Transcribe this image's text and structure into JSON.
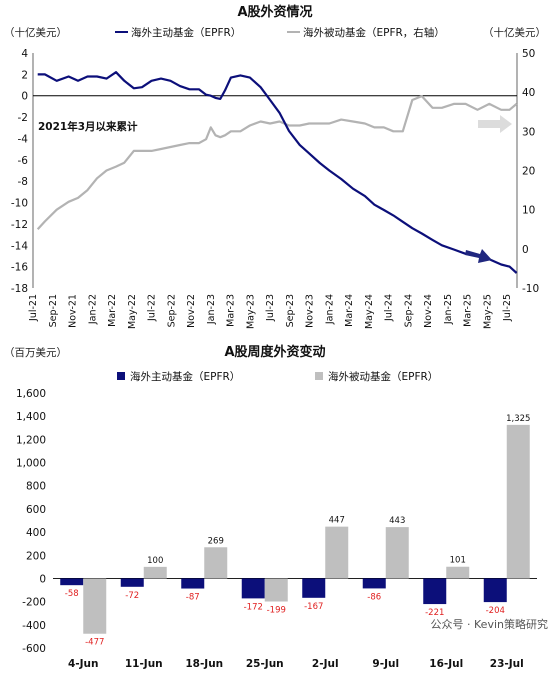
{
  "chart_data": [
    {
      "type": "line",
      "title": "A股外资情况",
      "y_left_unit": "（十亿美元）",
      "y_right_unit": "（十亿美元）",
      "ylim_left": [
        -18,
        4
      ],
      "yticks_left": [
        -18,
        -16,
        -14,
        -12,
        -10,
        -8,
        -6,
        -4,
        -2,
        0,
        2,
        4
      ],
      "ylim_right": [
        -10,
        50
      ],
      "yticks_right": [
        -10,
        0,
        10,
        20,
        30,
        40,
        50
      ],
      "xticks": [
        "Jul-21",
        "Sep-21",
        "Nov-21",
        "Jan-22",
        "Mar-22",
        "May-22",
        "Jul-22",
        "Sep-22",
        "Nov-22",
        "Jan-23",
        "Mar-23",
        "May-23",
        "Jul-23",
        "Sep-23",
        "Nov-23",
        "Jan-24",
        "Mar-24",
        "May-24",
        "Jul-24",
        "Sep-24",
        "Nov-24",
        "Jan-25",
        "Mar-25",
        "May-25",
        "Jul-25"
      ],
      "annotation": "2021年3月以来累计",
      "legend_position": "top",
      "series": [
        {
          "name": "海外主动基金（EPFR）",
          "axis": "left",
          "color": "#0c0f7a",
          "x": [
            2021.54,
            2021.6,
            2021.7,
            2021.8,
            2021.88,
            2021.96,
            2022.04,
            2022.12,
            2022.2,
            2022.27,
            2022.35,
            2022.42,
            2022.5,
            2022.58,
            2022.66,
            2022.74,
            2022.82,
            2022.9,
            2022.96,
            2023.0,
            2023.04,
            2023.08,
            2023.12,
            2023.17,
            2023.25,
            2023.33,
            2023.42,
            2023.5,
            2023.58,
            2023.66,
            2023.75,
            2023.83,
            2023.92,
            2024.0,
            2024.1,
            2024.2,
            2024.3,
            2024.38,
            2024.46,
            2024.54,
            2024.62,
            2024.7,
            2024.78,
            2024.87,
            2024.95,
            2025.05,
            2025.15,
            2025.25,
            2025.35,
            2025.45,
            2025.52,
            2025.58
          ],
          "y": [
            2.0,
            2.0,
            1.4,
            1.8,
            1.4,
            1.8,
            1.8,
            1.6,
            2.2,
            1.4,
            0.7,
            0.8,
            1.4,
            1.6,
            1.4,
            0.9,
            0.6,
            0.6,
            0.1,
            0.0,
            -0.2,
            -0.3,
            0.5,
            1.7,
            1.9,
            1.7,
            0.8,
            -0.4,
            -1.6,
            -3.3,
            -4.6,
            -5.4,
            -6.3,
            -7.0,
            -7.8,
            -8.7,
            -9.4,
            -10.2,
            -10.7,
            -11.2,
            -11.8,
            -12.4,
            -12.9,
            -13.5,
            -14.0,
            -14.4,
            -14.8,
            -15.0,
            -15.3,
            -15.8,
            -16.0,
            -16.6
          ]
        },
        {
          "name": "海外被动基金（EPFR，右轴）",
          "axis": "right",
          "color": "#b3b3b3",
          "x": [
            2021.54,
            2021.6,
            2021.7,
            2021.8,
            2021.88,
            2021.96,
            2022.04,
            2022.12,
            2022.2,
            2022.27,
            2022.35,
            2022.42,
            2022.5,
            2022.58,
            2022.66,
            2022.74,
            2022.82,
            2022.9,
            2022.96,
            2023.0,
            2023.04,
            2023.08,
            2023.12,
            2023.17,
            2023.25,
            2023.33,
            2023.42,
            2023.5,
            2023.58,
            2023.66,
            2023.75,
            2023.83,
            2023.92,
            2024.0,
            2024.1,
            2024.2,
            2024.3,
            2024.38,
            2024.46,
            2024.54,
            2024.62,
            2024.7,
            2024.78,
            2024.87,
            2024.95,
            2025.05,
            2025.15,
            2025.25,
            2025.35,
            2025.45,
            2025.52,
            2025.58
          ],
          "y": [
            5,
            7,
            10,
            12,
            13,
            15,
            18,
            20,
            21,
            22,
            25,
            25,
            25,
            25.5,
            26,
            26.5,
            27,
            27,
            28,
            31,
            29,
            28.5,
            29,
            30,
            30,
            31.5,
            32.5,
            32,
            32.5,
            31.5,
            31.5,
            32,
            32,
            32,
            33,
            32.5,
            32,
            31,
            31,
            30,
            30,
            38,
            39,
            36,
            36,
            37,
            37,
            35.5,
            37,
            35.5,
            35.5,
            37
          ]
        }
      ]
    },
    {
      "type": "bar",
      "title": "A股周度外资变动",
      "y_unit": "（百万美元）",
      "ylim": [
        -600,
        1600
      ],
      "yticks": [
        -600,
        -400,
        -200,
        0,
        200,
        400,
        600,
        800,
        1000,
        1200,
        1400,
        1600
      ],
      "categories": [
        "4-Jun",
        "11-Jun",
        "18-Jun",
        "25-Jun",
        "2-Jul",
        "9-Jul",
        "16-Jul",
        "23-Jul"
      ],
      "legend_position": "top",
      "series": [
        {
          "name": "海外主动基金（EPFR）",
          "color": "#0c0f7a",
          "values": [
            -58,
            -72,
            -87,
            -172,
            -167,
            -86,
            -221,
            -204
          ]
        },
        {
          "name": "海外被动基金（EPFR）",
          "color": "#bfbfbf",
          "values": [
            -477,
            100,
            269,
            -199,
            447,
            443,
            101,
            1325
          ]
        }
      ]
    }
  ],
  "watermark": "公众号 · Kevin策略研究"
}
